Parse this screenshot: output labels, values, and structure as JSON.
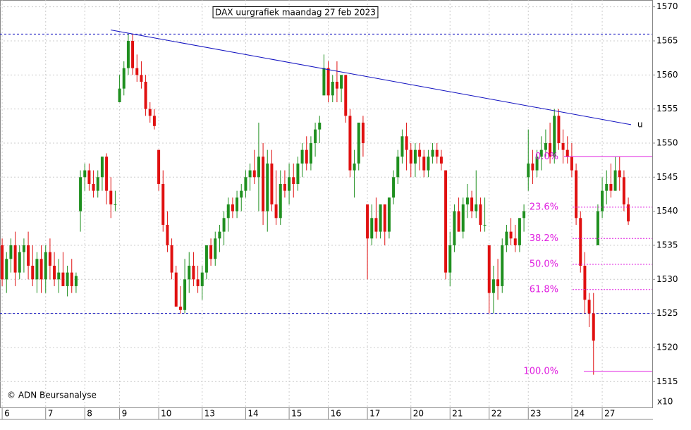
{
  "chart_data": {
    "type": "candlestick",
    "title": "DAX uurgrafiek maandag 27 feb 2023",
    "source": "© ADN Beursanalyse",
    "axis_multiplier": "x10",
    "ylim": [
      1511.2,
      1571
    ],
    "yticks": [
      1515,
      1520,
      1525,
      1530,
      1535,
      1540,
      1545,
      1550,
      1555,
      1560,
      1565,
      1570
    ],
    "categories": [
      "6",
      null,
      null,
      null,
      null,
      null,
      null,
      null,
      null,
      null,
      "7",
      null,
      null,
      null,
      null,
      null,
      null,
      null,
      null,
      "8",
      null,
      null,
      null,
      null,
      null,
      null,
      null,
      "9",
      null,
      null,
      null,
      null,
      null,
      null,
      null,
      null,
      "10",
      null,
      null,
      null,
      null,
      null,
      null,
      null,
      null,
      null,
      "13",
      null,
      null,
      null,
      null,
      null,
      null,
      null,
      null,
      null,
      "14",
      null,
      null,
      null,
      null,
      null,
      null,
      null,
      null,
      null,
      "15",
      null,
      null,
      null,
      null,
      null,
      null,
      null,
      null,
      "16",
      null,
      null,
      null,
      null,
      null,
      null,
      null,
      null,
      "17",
      null,
      null,
      null,
      null,
      null,
      null,
      null,
      null,
      null,
      "20",
      null,
      null,
      null,
      null,
      null,
      null,
      null,
      null,
      "21",
      null,
      null,
      null,
      null,
      null,
      null,
      null,
      null,
      "22",
      null,
      null,
      null,
      null,
      null,
      null,
      null,
      null,
      "23",
      null,
      null,
      null,
      null,
      null,
      null,
      null,
      null,
      null,
      "24",
      null,
      null,
      null,
      null,
      null,
      null,
      "27",
      null,
      null,
      null,
      null,
      null,
      null
    ],
    "open": [
      1535,
      1530,
      1533,
      1535,
      1531,
      1534,
      1535,
      1532,
      1530,
      1533,
      1530,
      1534,
      1532,
      1530,
      1531,
      1529,
      1531,
      1529,
      1540,
      1545,
      1546,
      1544,
      1543,
      1545,
      1548,
      1543,
      1541,
      1556,
      1558,
      1561,
      1565,
      1561,
      1560,
      1559,
      1555,
      1554,
      1549,
      1544,
      1538,
      1535,
      1531,
      1526,
      1525.5,
      1530,
      1532,
      1530,
      1529,
      1531,
      1535,
      1533,
      1536,
      1537,
      1539,
      1541,
      1540,
      1542,
      1543,
      1545,
      1546,
      1545,
      1548,
      1540,
      1547,
      1541,
      1539,
      1544,
      1543,
      1545,
      1544,
      1547,
      1549,
      1547,
      1550,
      1552,
      1557,
      1561,
      1557,
      1559,
      1558,
      1560,
      1554,
      1546,
      1547,
      1553,
      1541,
      1536,
      1539,
      1537,
      1541,
      1537,
      1542,
      1545,
      1548,
      1551,
      1549,
      1547,
      1549,
      1548,
      1546,
      1548,
      1549,
      1548,
      1546,
      1531,
      1535,
      1540,
      1537,
      1541,
      1542,
      1540,
      1541,
      1538,
      1535,
      1528,
      1530,
      1529,
      1535,
      1537,
      1536,
      1535,
      1539,
      1545,
      1547,
      1546,
      1548,
      1549,
      1550,
      1548,
      1554,
      1550,
      1549,
      1548,
      1546,
      1539,
      1532,
      1527,
      1525,
      1535,
      1540,
      1543,
      1544,
      1543,
      1546,
      1545,
      1541
    ],
    "high": [
      1536,
      1534,
      1536,
      1537,
      1535,
      1536,
      1537,
      1535,
      1534,
      1535,
      1535,
      1536,
      1534,
      1533,
      1534,
      1532,
      1533,
      1531,
      1546,
      1547,
      1547,
      1546,
      1546,
      1548,
      1548.5,
      1545,
      1543,
      1560,
      1562,
      1566,
      1566,
      1563,
      1562,
      1560,
      1556,
      1555,
      1549,
      1546,
      1540,
      1536,
      1532,
      1529,
      1533,
      1534,
      1534,
      1532,
      1532,
      1535,
      1536,
      1537,
      1538,
      1540,
      1542,
      1542,
      1543,
      1544,
      1546,
      1547,
      1549,
      1553,
      1550,
      1549,
      1549,
      1546,
      1546,
      1546,
      1547,
      1547,
      1548,
      1550,
      1551,
      1551,
      1553,
      1554,
      1563,
      1562,
      1560,
      1562,
      1560,
      1560,
      1555,
      1549,
      1553,
      1554,
      1541,
      1541,
      1542,
      1541,
      1541,
      1542,
      1546,
      1549,
      1552,
      1553,
      1550,
      1550,
      1550,
      1549,
      1549,
      1550,
      1550,
      1549,
      1546,
      1537,
      1541,
      1542,
      1542,
      1544,
      1543,
      1546,
      1542,
      1542,
      1535,
      1532,
      1533,
      1536,
      1538,
      1539,
      1538,
      1539,
      1541,
      1552,
      1549,
      1549,
      1551,
      1552,
      1553,
      1555,
      1555,
      1552,
      1551,
      1550,
      1547,
      1540,
      1534,
      1528,
      1528,
      1541,
      1545,
      1546,
      1547,
      1548,
      1548,
      1546,
      1542
    ],
    "low": [
      1529,
      1528,
      1531,
      1529,
      1530,
      1531,
      1530,
      1529,
      1528,
      1528,
      1528,
      1530,
      1529,
      1528,
      1529,
      1527.5,
      1528,
      1528,
      1537,
      1543,
      1543,
      1542,
      1542,
      1543,
      1541,
      1539,
      1540,
      1556,
      1557,
      1560,
      1560,
      1559,
      1558,
      1554,
      1553,
      1552,
      1543,
      1537,
      1534,
      1530,
      1526,
      1525,
      1525,
      1528,
      1529,
      1528,
      1527,
      1530,
      1532,
      1532,
      1534,
      1535,
      1537,
      1539,
      1539,
      1540,
      1542,
      1543,
      1544,
      1540,
      1538,
      1537,
      1540,
      1538,
      1538,
      1542,
      1541,
      1542,
      1543,
      1545,
      1546,
      1546,
      1548,
      1550,
      1557,
      1556,
      1556,
      1556,
      1556,
      1553,
      1545,
      1542,
      1546,
      1548,
      1530,
      1535,
      1536,
      1536,
      1535,
      1536,
      1541,
      1544,
      1547,
      1546,
      1545,
      1545,
      1546,
      1545,
      1545,
      1547,
      1547,
      1546,
      1530,
      1529,
      1534,
      1537,
      1536,
      1539,
      1539,
      1539,
      1537,
      1537,
      1525,
      1525,
      1527,
      1528,
      1534,
      1535,
      1534,
      1534,
      1537,
      1543,
      1544,
      1545,
      1546,
      1548,
      1547,
      1547,
      1549,
      1547,
      1547,
      1545,
      1538,
      1531,
      1525,
      1523,
      1516,
      1535,
      1539,
      1541,
      1542,
      1543,
      1543,
      1540,
      1538
    ],
    "close": [
      1530,
      1533,
      1535,
      1531,
      1534,
      1535,
      1532,
      1530,
      1533,
      1530,
      1534,
      1532,
      1530,
      1531,
      1529,
      1531,
      1529,
      1530.5,
      1545,
      1546,
      1544,
      1543,
      1545,
      1548,
      1543,
      1541,
      1541,
      1558,
      1561,
      1565,
      1561,
      1560,
      1559,
      1555,
      1554,
      1552.5,
      1544,
      1538,
      1535,
      1531,
      1526,
      1525.5,
      1530,
      1532,
      1530,
      1529,
      1531,
      1535,
      1533,
      1536,
      1537,
      1539,
      1541,
      1540,
      1542,
      1543,
      1545,
      1546,
      1545,
      1548,
      1540,
      1547,
      1541,
      1539,
      1544,
      1543,
      1545,
      1544,
      1547,
      1549,
      1547,
      1550,
      1552,
      1553,
      1561,
      1557,
      1559,
      1558,
      1560,
      1554,
      1546,
      1547,
      1553,
      1550,
      1536,
      1539,
      1537,
      1541,
      1537,
      1542,
      1545,
      1548,
      1551,
      1549,
      1547,
      1549,
      1548,
      1546,
      1548,
      1549,
      1548,
      1547,
      1531,
      1535,
      1540,
      1537,
      1541,
      1542,
      1540,
      1541,
      1538,
      1538,
      1528,
      1530,
      1529,
      1535,
      1537,
      1536,
      1535,
      1539,
      1540,
      1547,
      1546,
      1548,
      1549,
      1550,
      1548,
      1554,
      1550,
      1549,
      1548,
      1546,
      1539,
      1532,
      1527,
      1525,
      1521,
      1540,
      1543,
      1544,
      1543,
      1546,
      1545,
      1541,
      1538.5
    ],
    "up_color": "#1f8f1f",
    "down_color": "#e01010",
    "grid": true,
    "hlines": [
      1566,
      1525
    ],
    "trendline": {
      "y": [
        1566.6,
        1552.7
      ],
      "label": "u",
      "color": "#1010c0"
    },
    "fib_levels": [
      {
        "label": "0.0%",
        "value": 1548
      },
      {
        "label": "23.6%",
        "value": 1540.6
      },
      {
        "label": "38.2%",
        "value": 1536
      },
      {
        "label": "50.0%",
        "value": 1532.2
      },
      {
        "label": "61.8%",
        "value": 1528.5
      },
      {
        "label": "100.0%",
        "value": 1516.5
      }
    ]
  }
}
